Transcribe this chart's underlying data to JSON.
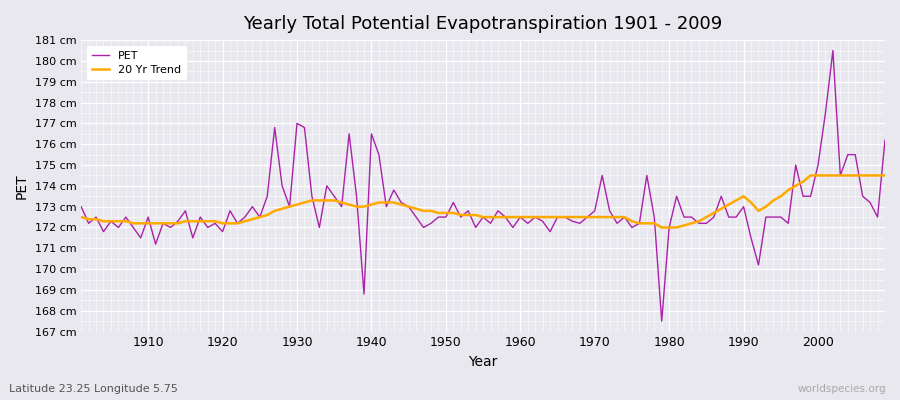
{
  "title": "Yearly Total Potential Evapotranspiration 1901 - 2009",
  "xlabel": "Year",
  "ylabel": "PET",
  "subtitle": "Latitude 23.25 Longitude 5.75",
  "watermark": "worldspecies.org",
  "pet_color": "#aa22aa",
  "trend_color": "#ffaa00",
  "bg_color": "#e8e8ee",
  "grid_color": "#d0d0d8",
  "ylim_min": 167,
  "ylim_max": 181,
  "years": [
    1901,
    1902,
    1903,
    1904,
    1905,
    1906,
    1907,
    1908,
    1909,
    1910,
    1911,
    1912,
    1913,
    1914,
    1915,
    1916,
    1917,
    1918,
    1919,
    1920,
    1921,
    1922,
    1923,
    1924,
    1925,
    1926,
    1927,
    1928,
    1929,
    1930,
    1931,
    1932,
    1933,
    1934,
    1935,
    1936,
    1937,
    1938,
    1939,
    1940,
    1941,
    1942,
    1943,
    1944,
    1945,
    1946,
    1947,
    1948,
    1949,
    1950,
    1951,
    1952,
    1953,
    1954,
    1955,
    1956,
    1957,
    1958,
    1959,
    1960,
    1961,
    1962,
    1963,
    1964,
    1965,
    1966,
    1967,
    1968,
    1969,
    1970,
    1971,
    1972,
    1973,
    1974,
    1975,
    1976,
    1977,
    1978,
    1979,
    1980,
    1981,
    1982,
    1983,
    1984,
    1985,
    1986,
    1987,
    1988,
    1989,
    1990,
    1991,
    1992,
    1993,
    1994,
    1995,
    1996,
    1997,
    1998,
    1999,
    2000,
    2001,
    2002,
    2003,
    2004,
    2005,
    2006,
    2007,
    2008,
    2009
  ],
  "pet_values": [
    173.0,
    172.2,
    172.5,
    171.8,
    172.3,
    172.0,
    172.5,
    172.0,
    171.5,
    172.5,
    171.2,
    172.2,
    172.0,
    172.3,
    172.8,
    171.5,
    172.5,
    172.0,
    172.2,
    171.8,
    172.8,
    172.2,
    172.5,
    173.0,
    172.5,
    173.5,
    176.8,
    174.0,
    173.0,
    177.0,
    176.8,
    173.5,
    172.0,
    174.0,
    173.5,
    173.0,
    176.5,
    173.5,
    168.8,
    176.5,
    175.5,
    173.0,
    173.8,
    173.2,
    173.0,
    172.5,
    172.0,
    172.2,
    172.5,
    172.5,
    173.2,
    172.5,
    172.8,
    172.0,
    172.5,
    172.2,
    172.8,
    172.5,
    172.0,
    172.5,
    172.2,
    172.5,
    172.3,
    171.8,
    172.5,
    172.5,
    172.3,
    172.2,
    172.5,
    172.8,
    174.5,
    172.8,
    172.2,
    172.5,
    172.0,
    172.2,
    174.5,
    172.5,
    167.5,
    172.0,
    173.5,
    172.5,
    172.5,
    172.2,
    172.2,
    172.5,
    173.5,
    172.5,
    172.5,
    173.0,
    171.5,
    170.2,
    172.5,
    172.5,
    172.5,
    172.2,
    175.0,
    173.5,
    173.5,
    175.0,
    177.5,
    180.5,
    174.5,
    175.5,
    175.5,
    173.5,
    173.2,
    172.5,
    176.2
  ],
  "trend_values": [
    172.5,
    172.4,
    172.4,
    172.3,
    172.3,
    172.3,
    172.3,
    172.2,
    172.2,
    172.2,
    172.2,
    172.2,
    172.2,
    172.2,
    172.3,
    172.3,
    172.3,
    172.3,
    172.3,
    172.2,
    172.2,
    172.2,
    172.3,
    172.4,
    172.5,
    172.6,
    172.8,
    172.9,
    173.0,
    173.1,
    173.2,
    173.3,
    173.3,
    173.3,
    173.3,
    173.2,
    173.1,
    173.0,
    173.0,
    173.1,
    173.2,
    173.2,
    173.2,
    173.1,
    173.0,
    172.9,
    172.8,
    172.8,
    172.7,
    172.7,
    172.7,
    172.6,
    172.6,
    172.6,
    172.5,
    172.5,
    172.5,
    172.5,
    172.5,
    172.5,
    172.5,
    172.5,
    172.5,
    172.5,
    172.5,
    172.5,
    172.5,
    172.5,
    172.5,
    172.5,
    172.5,
    172.5,
    172.5,
    172.5,
    172.3,
    172.2,
    172.2,
    172.2,
    172.0,
    172.0,
    172.0,
    172.1,
    172.2,
    172.3,
    172.5,
    172.7,
    172.9,
    173.1,
    173.3,
    173.5,
    173.2,
    172.8,
    173.0,
    173.3,
    173.5,
    173.8,
    174.0,
    174.2,
    174.5,
    174.5,
    174.5,
    174.5,
    174.5,
    174.5,
    174.5,
    174.5,
    174.5,
    174.5,
    174.5
  ]
}
